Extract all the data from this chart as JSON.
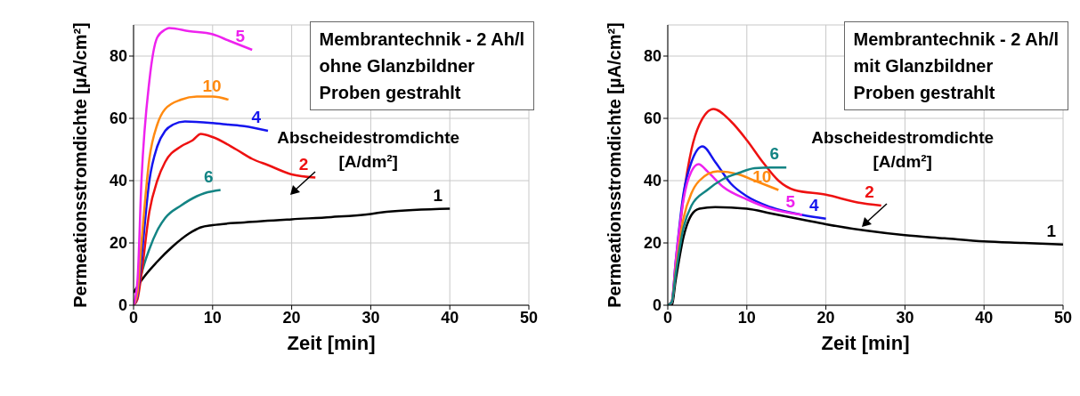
{
  "chart_data": [
    {
      "type": "line",
      "xlabel": "Zeit [min]",
      "ylabel": "Permeationsstromdichte [µA/cm²]",
      "xlim": [
        0,
        50
      ],
      "ylim": [
        0,
        90
      ],
      "xticks": [
        0,
        10,
        20,
        30,
        40,
        50
      ],
      "yticks": [
        0,
        20,
        40,
        60,
        80
      ],
      "grid": true,
      "annotations": [
        "Membrantechnik - 2 Ah/l\nohne Glanzbildner\nProben gestrahlt",
        {
          "text": "Abscheidestromdichte\n[A/dm²]",
          "x": 23,
          "y": 41
        }
      ],
      "series": [
        {
          "name": "1",
          "color": "#000000",
          "x": [
            0,
            1,
            3,
            5,
            7,
            8.5,
            10,
            14,
            20,
            25,
            30,
            32,
            40
          ],
          "values": [
            4,
            8,
            14,
            19,
            23,
            25,
            25.7,
            26.6,
            27.6,
            28.3,
            29.3,
            30,
            31
          ]
        },
        {
          "name": "6",
          "color": "#138484",
          "x": [
            0,
            0.5,
            1,
            2,
            3,
            4,
            6,
            8,
            9,
            11
          ],
          "values": [
            0,
            4,
            10,
            18,
            24,
            28,
            32,
            35,
            36,
            37
          ]
        },
        {
          "name": "2",
          "color": "#ee1111",
          "x": [
            0,
            0.5,
            1,
            2,
            3,
            4,
            6,
            7.5,
            8.5,
            10,
            13,
            15,
            17,
            20,
            23
          ],
          "values": [
            0,
            2,
            10,
            30,
            40,
            46,
            51,
            53,
            55,
            54,
            50,
            47,
            45,
            42,
            41
          ]
        },
        {
          "name": "4",
          "color": "#1515ee",
          "x": [
            0,
            0.5,
            1,
            2,
            3,
            4,
            5,
            6.5,
            10,
            12,
            14,
            17
          ],
          "values": [
            0,
            3,
            15,
            40,
            51,
            56,
            58,
            59,
            58.5,
            58,
            57.5,
            56
          ]
        },
        {
          "name": "10",
          "color": "#ff8a10",
          "x": [
            0,
            0.5,
            1,
            2,
            3,
            4,
            6,
            8,
            10,
            12
          ],
          "values": [
            0,
            4,
            20,
            47,
            58,
            63,
            66,
            67,
            67,
            66
          ]
        },
        {
          "name": "5",
          "color": "#ee22ee",
          "x": [
            0,
            0.5,
            1,
            2,
            3,
            4,
            4.5,
            7,
            10,
            12,
            15
          ],
          "values": [
            0,
            8,
            40,
            72,
            86,
            88.5,
            89,
            88,
            87,
            85,
            82
          ]
        }
      ]
    },
    {
      "type": "line",
      "xlabel": "Zeit [min]",
      "ylabel": "Permeationsstromdichte [µA/cm²]",
      "xlim": [
        0,
        50
      ],
      "ylim": [
        0,
        90
      ],
      "xticks": [
        0,
        10,
        20,
        30,
        40,
        50
      ],
      "yticks": [
        0,
        20,
        40,
        60,
        80
      ],
      "grid": true,
      "annotations": [
        "Membrantechnik - 2 Ah/l\nmit Glanzbildner\nProben gestrahlt",
        {
          "text": "Abscheidestromdichte\n[A/dm²]",
          "x": 27,
          "y": 32
        }
      ],
      "series": [
        {
          "name": "1",
          "color": "#000000",
          "x": [
            0,
            0.5,
            1,
            2,
            3,
            4,
            6,
            10,
            13,
            17,
            20,
            25,
            30,
            35,
            40,
            45,
            50
          ],
          "values": [
            0,
            0,
            8,
            22,
            29,
            31,
            31.5,
            31,
            29.5,
            27.5,
            26,
            24,
            22.5,
            21.5,
            20.5,
            20,
            19.5
          ]
        },
        {
          "name": "2",
          "color": "#ee1111",
          "x": [
            0,
            0.5,
            1,
            2,
            3,
            4,
            5.8,
            8,
            10,
            12,
            14,
            16,
            20,
            24,
            27
          ],
          "values": [
            0,
            1,
            12,
            35,
            50,
            58,
            63,
            59,
            53,
            46,
            40,
            37,
            35.5,
            33,
            32
          ]
        },
        {
          "name": "4",
          "color": "#1515ee",
          "x": [
            0,
            0.5,
            1,
            2,
            3,
            4.4,
            6,
            8,
            10,
            13,
            17,
            20
          ],
          "values": [
            0,
            1,
            14,
            36,
            46,
            51,
            46,
            39,
            35,
            31.5,
            29,
            27.8
          ]
        },
        {
          "name": "5",
          "color": "#ee22ee",
          "x": [
            0,
            0.5,
            1,
            2,
            3,
            3.9,
            5,
            7,
            10,
            13,
            17
          ],
          "values": [
            0,
            1,
            14,
            34,
            43,
            45.3,
            43,
            38,
            34,
            31,
            29
          ]
        },
        {
          "name": "10",
          "color": "#ff8a10",
          "x": [
            0,
            0.5,
            1,
            2,
            3,
            4,
            6.3,
            9,
            11,
            14
          ],
          "values": [
            0,
            1,
            11,
            28,
            36,
            40,
            43,
            42,
            40,
            37
          ]
        },
        {
          "name": "6",
          "color": "#138484",
          "x": [
            0,
            0.5,
            1,
            2,
            3,
            5,
            7,
            9,
            11,
            13,
            15
          ],
          "values": [
            0,
            1,
            10,
            25,
            32,
            37,
            40.5,
            42.5,
            44,
            44.2,
            44.2
          ]
        }
      ]
    }
  ]
}
